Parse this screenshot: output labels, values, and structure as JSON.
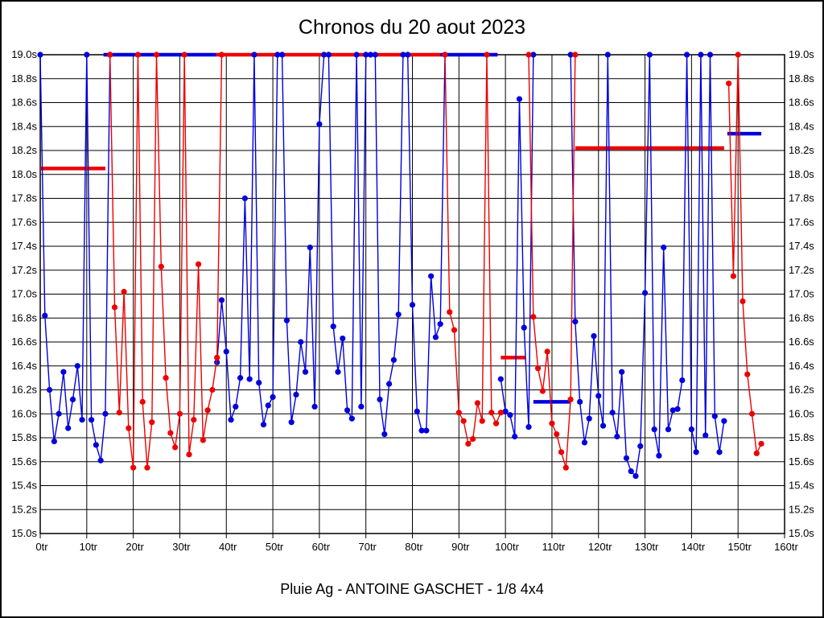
{
  "title": "Chronos du 20 aout 2023",
  "subtitle": "Pluie Ag - ANTOINE GASCHET - 1/8 4x4",
  "colors": {
    "blue": "#0000dd",
    "red": "#ee0000",
    "grid": "#000000",
    "background": "#ffffff"
  },
  "chart_data": {
    "type": "line",
    "title": "Chronos du 20 aout 2023",
    "xlabel_unit": "tr",
    "ylabel_unit": "s",
    "xlim": [
      0,
      160
    ],
    "ylim": [
      15.0,
      19.0
    ],
    "grid": true,
    "x_tick_labels": [
      "0tr",
      "10tr",
      "20tr",
      "30tr",
      "40tr",
      "50tr",
      "60tr",
      "70tr",
      "80tr",
      "90tr",
      "100tr",
      "110tr",
      "120tr",
      "130tr",
      "140tr",
      "150tr",
      "160tr"
    ],
    "y_tick_labels": [
      "19.0s",
      "18.8s",
      "18.6s",
      "18.4s",
      "18.2s",
      "18.0s",
      "17.8s",
      "17.6s",
      "17.4s",
      "17.2s",
      "17.0s",
      "16.8s",
      "16.6s",
      "16.4s",
      "16.2s",
      "16.0s",
      "15.8s",
      "15.6s",
      "15.4s",
      "15.2s",
      "15.0s"
    ],
    "clip_value": 19.0,
    "series": [
      {
        "name": "chronos-bleu",
        "color_key": "blue",
        "points": [
          [
            0,
            19.0
          ],
          [
            1,
            16.82
          ],
          [
            2,
            16.2
          ],
          [
            3,
            15.77
          ],
          [
            4,
            16.0
          ],
          [
            5,
            16.35
          ],
          [
            6,
            15.88
          ],
          [
            7,
            16.12
          ],
          [
            8,
            16.4
          ],
          [
            9,
            15.95
          ],
          [
            10,
            19.0
          ],
          [
            11,
            15.95
          ],
          [
            12,
            15.74
          ],
          [
            13,
            15.61
          ],
          [
            14,
            16.0
          ],
          [
            15,
            19.0
          ],
          [
            38,
            16.43
          ],
          [
            39,
            16.95
          ],
          [
            40,
            16.52
          ],
          [
            41,
            15.95
          ],
          [
            42,
            16.06
          ],
          [
            43,
            16.3
          ],
          [
            44,
            17.8
          ],
          [
            45,
            16.29
          ],
          [
            46,
            19.0
          ],
          [
            47,
            16.26
          ],
          [
            48,
            15.91
          ],
          [
            49,
            16.07
          ],
          [
            50,
            16.14
          ],
          [
            51,
            19.0
          ],
          [
            52,
            19.0
          ],
          [
            53,
            16.78
          ],
          [
            54,
            15.93
          ],
          [
            55,
            16.16
          ],
          [
            56,
            16.6
          ],
          [
            57,
            16.35
          ],
          [
            58,
            17.39
          ],
          [
            59,
            16.06
          ],
          [
            60,
            18.42
          ],
          [
            61,
            19.0
          ],
          [
            62,
            19.0
          ],
          [
            63,
            16.73
          ],
          [
            64,
            16.35
          ],
          [
            65,
            16.63
          ],
          [
            66,
            16.03
          ],
          [
            67,
            15.96
          ],
          [
            68,
            19.0
          ],
          [
            69,
            16.06
          ],
          [
            70,
            19.0
          ],
          [
            71,
            19.0
          ],
          [
            72,
            19.0
          ],
          [
            73,
            16.12
          ],
          [
            74,
            15.83
          ],
          [
            75,
            16.25
          ],
          [
            76,
            16.45
          ],
          [
            77,
            16.83
          ],
          [
            78,
            19.0
          ],
          [
            79,
            19.0
          ],
          [
            80,
            16.91
          ],
          [
            81,
            16.02
          ],
          [
            82,
            15.86
          ],
          [
            83,
            15.86
          ],
          [
            84,
            17.15
          ],
          [
            85,
            16.64
          ],
          [
            86,
            16.75
          ],
          [
            87,
            19.0
          ],
          [
            99,
            16.29
          ],
          [
            100,
            16.02
          ],
          [
            101,
            15.99
          ],
          [
            102,
            15.81
          ],
          [
            103,
            18.63
          ],
          [
            104,
            16.72
          ],
          [
            105,
            15.89
          ],
          [
            106,
            19.0
          ],
          [
            114,
            19.0
          ],
          [
            115,
            16.77
          ],
          [
            116,
            16.1
          ],
          [
            117,
            15.76
          ],
          [
            118,
            15.96
          ],
          [
            119,
            16.65
          ],
          [
            120,
            16.15
          ],
          [
            121,
            15.9
          ],
          [
            122,
            19.0
          ],
          [
            123,
            16.01
          ],
          [
            124,
            15.81
          ],
          [
            125,
            16.35
          ],
          [
            126,
            15.63
          ],
          [
            127,
            15.52
          ],
          [
            128,
            15.48
          ],
          [
            129,
            15.73
          ],
          [
            130,
            17.01
          ],
          [
            131,
            19.0
          ],
          [
            132,
            15.87
          ],
          [
            133,
            15.65
          ],
          [
            134,
            17.39
          ],
          [
            135,
            15.87
          ],
          [
            136,
            16.03
          ],
          [
            137,
            16.04
          ],
          [
            138,
            16.28
          ],
          [
            139,
            19.0
          ],
          [
            140,
            15.87
          ],
          [
            141,
            15.68
          ],
          [
            142,
            19.0
          ],
          [
            143,
            15.82
          ],
          [
            144,
            19.0
          ],
          [
            145,
            15.98
          ],
          [
            146,
            15.68
          ],
          [
            147,
            15.94
          ]
        ]
      },
      {
        "name": "chronos-rouge",
        "color_key": "red",
        "points": [
          [
            15,
            19.0
          ],
          [
            16,
            16.89
          ],
          [
            17,
            16.01
          ],
          [
            18,
            17.02
          ],
          [
            19,
            15.88
          ],
          [
            20,
            15.55
          ],
          [
            21,
            19.0
          ],
          [
            22,
            16.1
          ],
          [
            23,
            15.55
          ],
          [
            24,
            15.93
          ],
          [
            25,
            19.0
          ],
          [
            26,
            17.23
          ],
          [
            27,
            16.3
          ],
          [
            28,
            15.84
          ],
          [
            29,
            15.72
          ],
          [
            30,
            16.0
          ],
          [
            31,
            19.0
          ],
          [
            32,
            15.66
          ],
          [
            33,
            15.95
          ],
          [
            34,
            17.25
          ],
          [
            35,
            15.78
          ],
          [
            36,
            16.03
          ],
          [
            37,
            16.2
          ],
          [
            38,
            16.47
          ],
          [
            39,
            19.0
          ],
          [
            87,
            19.0
          ],
          [
            88,
            16.85
          ],
          [
            89,
            16.7
          ],
          [
            90,
            16.01
          ],
          [
            91,
            15.94
          ],
          [
            92,
            15.75
          ],
          [
            93,
            15.79
          ],
          [
            94,
            16.09
          ],
          [
            95,
            15.94
          ],
          [
            96,
            19.0
          ],
          [
            97,
            16.01
          ],
          [
            98,
            15.92
          ],
          [
            99,
            16.01
          ],
          [
            105,
            19.0
          ],
          [
            106,
            16.81
          ],
          [
            107,
            16.38
          ],
          [
            108,
            16.19
          ],
          [
            109,
            16.52
          ],
          [
            110,
            15.92
          ],
          [
            111,
            15.83
          ],
          [
            112,
            15.68
          ],
          [
            113,
            15.55
          ],
          [
            114,
            16.12
          ],
          [
            115,
            19.0
          ],
          [
            148,
            18.76
          ],
          [
            149,
            17.15
          ],
          [
            150,
            19.0
          ],
          [
            151,
            16.94
          ],
          [
            152,
            16.33
          ],
          [
            153,
            16.0
          ],
          [
            154,
            15.67
          ],
          [
            155,
            15.75
          ]
        ]
      }
    ],
    "average_segments": [
      {
        "color_key": "red",
        "value": 18.05,
        "from_tr": 0.0,
        "to_tr": 14.0
      },
      {
        "color_key": "blue",
        "value": 19.0,
        "from_tr": 13.6,
        "to_tr": 37.8
      },
      {
        "color_key": "red",
        "value": 19.0,
        "from_tr": 37.8,
        "to_tr": 86.0
      },
      {
        "color_key": "blue",
        "value": 19.0,
        "from_tr": 86.0,
        "to_tr": 98.3
      },
      {
        "color_key": "red",
        "value": 16.47,
        "from_tr": 99.0,
        "to_tr": 104.3
      },
      {
        "color_key": "blue",
        "value": 16.1,
        "from_tr": 106.0,
        "to_tr": 114.0
      },
      {
        "color_key": "red",
        "value": 18.22,
        "from_tr": 115.0,
        "to_tr": 147.0
      },
      {
        "color_key": "blue",
        "value": 18.34,
        "from_tr": 147.7,
        "to_tr": 155.0
      }
    ]
  }
}
